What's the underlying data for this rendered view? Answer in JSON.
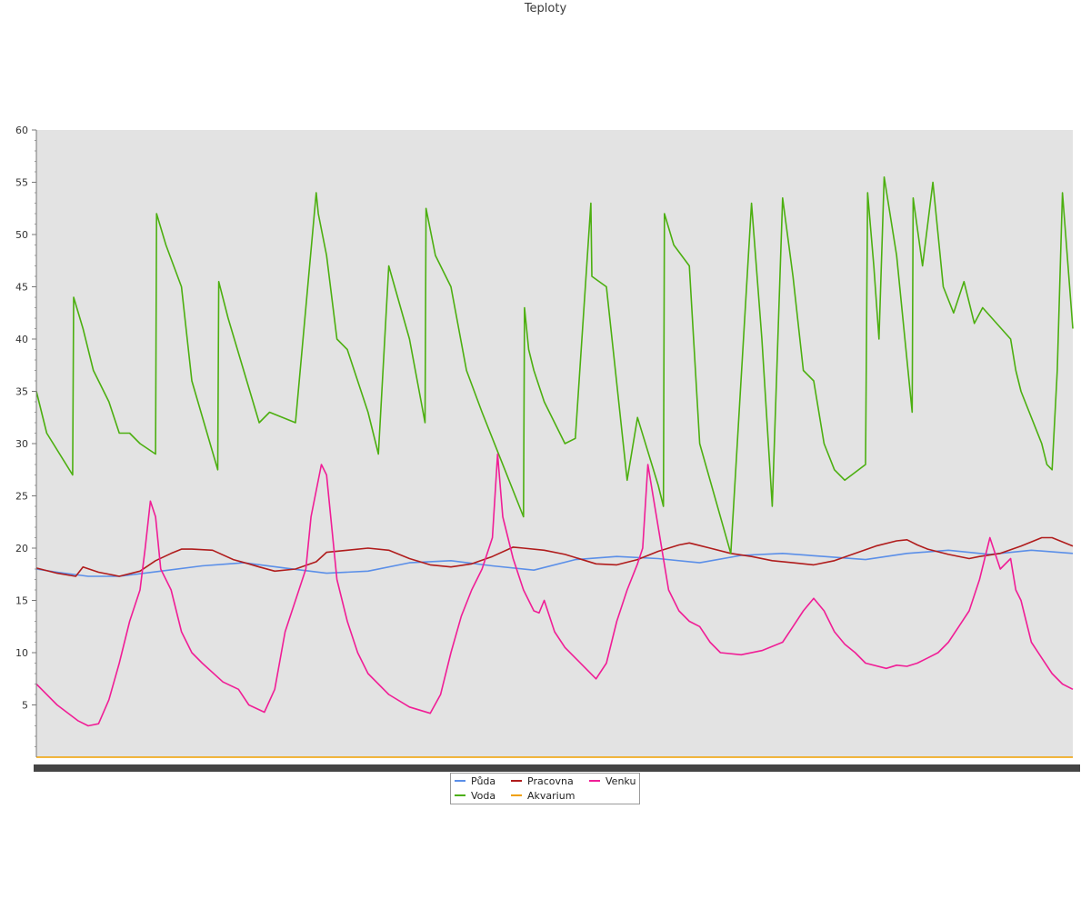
{
  "chart_data": {
    "type": "line",
    "title": "Teploty",
    "xlabel": "",
    "ylabel": "",
    "ylim": [
      0,
      60
    ],
    "yticks": [
      5,
      10,
      15,
      20,
      25,
      30,
      35,
      40,
      45,
      50,
      55,
      60
    ],
    "xlim": [
      0,
      100
    ],
    "grid": false,
    "legend_position": "bottom-center",
    "background": "#e3e3e3",
    "series": [
      {
        "name": "Půda",
        "color": "#5b8fe8",
        "x": [
          0,
          2,
          5,
          8,
          12,
          16,
          20,
          24,
          28,
          32,
          36,
          40,
          44,
          48,
          52,
          56,
          60,
          64,
          68,
          72,
          76,
          80,
          84,
          88,
          92,
          96,
          100
        ],
        "y": [
          18.0,
          17.7,
          17.3,
          17.3,
          17.8,
          18.3,
          18.6,
          18.1,
          17.6,
          17.8,
          18.6,
          18.8,
          18.3,
          17.9,
          18.9,
          19.2,
          19.0,
          18.6,
          19.3,
          19.5,
          19.2,
          18.9,
          19.5,
          19.8,
          19.4,
          19.8,
          19.5
        ]
      },
      {
        "name": "Pracovna",
        "color": "#b01c1c",
        "x": [
          0,
          2,
          3.8,
          4.5,
          6,
          8,
          10,
          11.5,
          13,
          14,
          15,
          17,
          19,
          20.5,
          21.5,
          23,
          25,
          27,
          28,
          30,
          32,
          34,
          36,
          38,
          40,
          42,
          44,
          46,
          47,
          49,
          51,
          53,
          54,
          56,
          58,
          60,
          62,
          63,
          65,
          67,
          69,
          71,
          73,
          75,
          77,
          79,
          81,
          83,
          84,
          85,
          86,
          88,
          90,
          91,
          93,
          95,
          97,
          98,
          100
        ],
        "y": [
          18.1,
          17.6,
          17.3,
          18.2,
          17.7,
          17.3,
          17.8,
          18.8,
          19.5,
          19.9,
          19.9,
          19.8,
          18.9,
          18.5,
          18.2,
          17.8,
          18.0,
          18.7,
          19.6,
          19.8,
          20.0,
          19.8,
          19.0,
          18.4,
          18.2,
          18.5,
          19.2,
          20.1,
          20.0,
          19.8,
          19.4,
          18.8,
          18.5,
          18.4,
          18.9,
          19.7,
          20.3,
          20.5,
          20.0,
          19.5,
          19.2,
          18.8,
          18.6,
          18.4,
          18.8,
          19.5,
          20.2,
          20.7,
          20.8,
          20.3,
          19.9,
          19.4,
          19.0,
          19.2,
          19.5,
          20.2,
          21.0,
          21.0,
          20.2
        ]
      },
      {
        "name": "Voda",
        "color": "#4caf10",
        "x": [
          0,
          1,
          3.5,
          3.6,
          4.5,
          5.5,
          7,
          8,
          9,
          10,
          11.5,
          11.6,
          12.5,
          14,
          15,
          17.5,
          17.6,
          18.5,
          20,
          21.5,
          22.5,
          25,
          27,
          27.2,
          28,
          29,
          30,
          32,
          33,
          34,
          36,
          37.5,
          37.6,
          38.5,
          40,
          41.5,
          43,
          47,
          47.1,
          47.5,
          48,
          49,
          51,
          52,
          53.5,
          53.6,
          55,
          57,
          58,
          60,
          60.5,
          60.6,
          61.5,
          63,
          64,
          67,
          69,
          70,
          71,
          72,
          73,
          74,
          75,
          76,
          77,
          78,
          80,
          80.2,
          80.8,
          81.3,
          81.8,
          83,
          84.5,
          84.6,
          85.5,
          86.5,
          87.5,
          88.5,
          89.5,
          90.5,
          91.3,
          94,
          94.5,
          95,
          97,
          97.5,
          98,
          98.5,
          99,
          100
        ],
        "y": [
          35,
          31,
          27,
          44,
          41,
          37,
          34,
          31,
          31,
          30,
          29,
          52,
          49,
          45,
          36,
          27.5,
          45.5,
          42,
          37,
          32,
          33,
          32,
          54,
          52,
          48,
          40,
          39,
          33,
          29,
          47,
          40,
          32,
          52.5,
          48,
          45,
          37,
          33,
          23,
          43,
          39,
          37,
          34,
          30,
          30.5,
          53,
          46,
          45,
          26.5,
          32.5,
          26,
          24,
          52,
          49,
          47,
          30,
          19.5,
          53,
          40,
          24,
          53.5,
          46,
          37,
          36,
          30,
          27.5,
          26.5,
          28,
          54,
          47,
          40,
          55.5,
          48,
          33,
          53.5,
          47,
          55,
          45,
          42.5,
          45.5,
          41.5,
          43,
          40,
          37,
          35,
          30,
          28,
          27.5,
          37,
          54,
          41
        ]
      },
      {
        "name": "Akvarium",
        "color": "#f0a000",
        "x": [
          0,
          100
        ],
        "y": [
          0,
          0
        ]
      },
      {
        "name": "Venku",
        "color": "#f01e96",
        "x": [
          0,
          2,
          4,
          5,
          6,
          7,
          8,
          9,
          10,
          10.5,
          11,
          11.5,
          12,
          13,
          14,
          15,
          16,
          18,
          19.5,
          20.5,
          22,
          23,
          24,
          25,
          26,
          26.5,
          27.5,
          28,
          28.5,
          29,
          30,
          31,
          32,
          34,
          36,
          38,
          39,
          40,
          41,
          42,
          43,
          44,
          44.5,
          45,
          45.5,
          46,
          47,
          48,
          48.5,
          49,
          50,
          51,
          52,
          53,
          54,
          55,
          56,
          57,
          58,
          58.5,
          59,
          60,
          61,
          62,
          63,
          64,
          65,
          66,
          68,
          70,
          72,
          73,
          74,
          75,
          76,
          77,
          78,
          79,
          80,
          82,
          83,
          84,
          85,
          86,
          87,
          88,
          89,
          90,
          91,
          92,
          93,
          94,
          94.5,
          95,
          95.5,
          96,
          97,
          98,
          99,
          100
        ],
        "y": [
          7,
          5,
          3.5,
          3,
          3.2,
          5.5,
          9,
          13,
          16,
          20,
          24.5,
          23,
          18,
          16,
          12,
          10,
          9,
          7.2,
          6.5,
          5,
          4.3,
          6.5,
          12,
          15,
          18,
          23,
          28,
          27,
          22,
          17,
          13,
          10,
          8,
          6,
          4.8,
          4.2,
          6,
          10,
          13.5,
          16,
          18,
          21,
          29,
          23,
          21,
          19,
          16,
          14,
          13.8,
          15,
          12,
          10.5,
          9.5,
          8.5,
          7.5,
          9,
          13,
          16,
          18.5,
          20,
          28,
          22,
          16,
          14,
          13,
          12.5,
          11,
          10,
          9.8,
          10.2,
          11,
          12.5,
          14,
          15.2,
          14,
          12,
          10.8,
          10,
          9,
          8.5,
          8.8,
          8.7,
          9,
          9.5,
          10,
          11,
          12.5,
          14,
          17,
          21,
          18,
          19,
          16,
          15,
          13,
          11,
          9.5,
          8,
          7,
          6.5
        ]
      }
    ]
  }
}
